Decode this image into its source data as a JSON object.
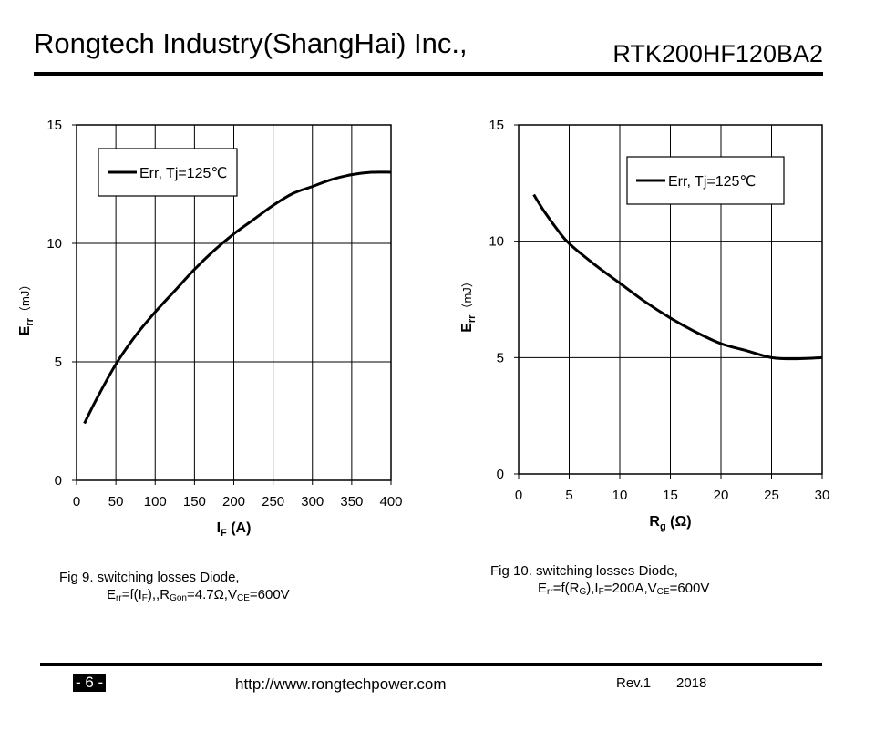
{
  "header": {
    "company": "Rongtech Industry(ShangHai) Inc.,",
    "part_number": "RTK200HF120BA2"
  },
  "captions": {
    "fig9": {
      "line1": "Fig 9. switching losses Diode,",
      "line2_pre": "E",
      "line2_sub1": "rr",
      "line2_mid1": "=f(I",
      "line2_sub2": "F",
      "line2_mid2": "),,R",
      "line2_sub3": "Gon",
      "line2_mid3": "=4.7Ω,V",
      "line2_sub4": "CE",
      "line2_end": "=600V"
    },
    "fig10": {
      "line1": "Fig 10. switching losses Diode,",
      "line2_pre": "E",
      "line2_sub1": "rr",
      "line2_mid1": "=f(R",
      "line2_sub2": "G",
      "line2_mid2": "),I",
      "line2_sub3": "F",
      "line2_mid3": "=200A,V",
      "line2_sub4": "CE",
      "line2_end": "=600V"
    }
  },
  "footer": {
    "page": "- 6 -",
    "url": "http://www.rongtechpower.com",
    "rev": "Rev.1",
    "year": "2018"
  },
  "chart_data": [
    {
      "type": "line",
      "title": "",
      "xlabel_main": "I",
      "xlabel_sub": "F",
      "xlabel_unit": " (A)",
      "ylabel_main": "E",
      "ylabel_sub": "rr",
      "ylabel_unit": "（mJ）",
      "xlim": [
        0,
        400
      ],
      "ylim": [
        0,
        15
      ],
      "xticks": [
        0,
        50,
        100,
        150,
        200,
        250,
        300,
        350,
        400
      ],
      "yticks": [
        0,
        5,
        10,
        15
      ],
      "grid": true,
      "legend_position": "top-left",
      "series": [
        {
          "name": "Err, Tj=125℃",
          "x": [
            10,
            25,
            50,
            75,
            100,
            125,
            150,
            175,
            200,
            225,
            250,
            275,
            300,
            325,
            350,
            375,
            400
          ],
          "y": [
            2.4,
            3.4,
            4.9,
            6.1,
            7.1,
            8.0,
            8.9,
            9.7,
            10.4,
            11.0,
            11.6,
            12.1,
            12.4,
            12.7,
            12.9,
            13.0,
            13.0
          ]
        }
      ]
    },
    {
      "type": "line",
      "title": "",
      "xlabel_main": "R",
      "xlabel_sub": "g",
      "xlabel_unit": " (Ω)",
      "ylabel_main": "E",
      "ylabel_sub": "rr",
      "ylabel_unit": "（mJ）",
      "xlim": [
        0,
        30
      ],
      "ylim": [
        0,
        15
      ],
      "xticks": [
        0,
        5,
        10,
        15,
        20,
        25,
        30
      ],
      "yticks": [
        0,
        5,
        10,
        15
      ],
      "grid": true,
      "legend_position": "top-right",
      "series": [
        {
          "name": "Err, Tj=125℃",
          "x": [
            1.5,
            2.5,
            4,
            5,
            7.5,
            10,
            12.5,
            15,
            17.5,
            20,
            22.5,
            25,
            27.5,
            30
          ],
          "y": [
            12.0,
            11.3,
            10.4,
            9.9,
            9.0,
            8.2,
            7.4,
            6.7,
            6.1,
            5.6,
            5.3,
            5.0,
            4.95,
            5.0
          ]
        }
      ]
    }
  ]
}
